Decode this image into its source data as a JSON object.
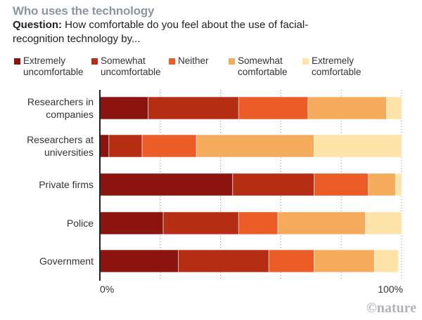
{
  "header": {
    "title": "Who uses the technology",
    "question_label": "Question:",
    "question_text": " How comfortable do you feel about the use of facial-recognition technology by..."
  },
  "credit": "©nature",
  "chart_data": {
    "type": "bar",
    "orientation": "horizontal",
    "stacked": true,
    "title": "Who uses the technology",
    "subtitle": "Question: How comfortable do you feel about the use of facial-recognition technology by...",
    "xlabel": "",
    "ylabel": "",
    "xlim": [
      0,
      100
    ],
    "x_tick_labels": [
      "0%",
      "100%"
    ],
    "grid": true,
    "legend_position": "top",
    "categories": [
      "Researchers in companies",
      "Researchers at universities",
      "Private firms",
      "Police",
      "Government"
    ],
    "category_lines": [
      [
        "Researchers in",
        "companies"
      ],
      [
        "Researchers at",
        "universities"
      ],
      [
        "Private firms"
      ],
      [
        "Police"
      ],
      [
        "Government"
      ]
    ],
    "series": [
      {
        "name": "Extremely uncomfortable",
        "legend_lines": [
          "Extremely",
          "uncomfortable"
        ],
        "color": "#8b150e",
        "values": [
          16,
          3,
          44,
          21,
          26
        ]
      },
      {
        "name": "Somewhat uncomfortable",
        "legend_lines": [
          "Somewhat",
          "uncomfortable"
        ],
        "color": "#b52d12",
        "values": [
          30,
          11,
          27,
          25,
          30
        ]
      },
      {
        "name": "Neither",
        "legend_lines": [
          "Neither",
          ""
        ],
        "color": "#eb5c26",
        "values": [
          23,
          18,
          18,
          13,
          15
        ]
      },
      {
        "name": "Somewhat comfortable",
        "legend_lines": [
          "Somewhat",
          "comfortable"
        ],
        "color": "#f6aa5b",
        "values": [
          26,
          39,
          9,
          29,
          20
        ]
      },
      {
        "name": "Extremely comfortable",
        "legend_lines": [
          "Extremely",
          "comfortable"
        ],
        "color": "#fee4a8",
        "values": [
          5,
          29,
          2,
          12,
          8
        ]
      }
    ]
  }
}
